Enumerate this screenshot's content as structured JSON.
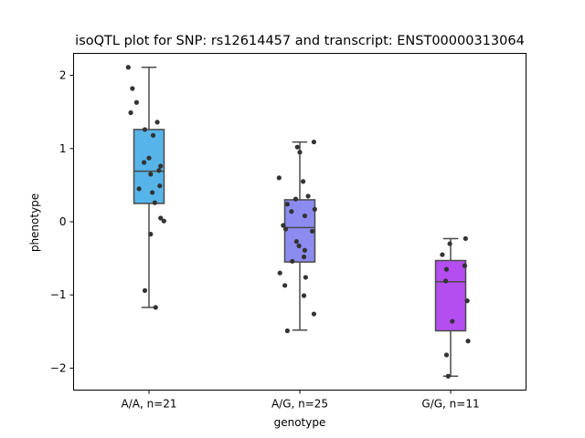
{
  "chart_data": {
    "type": "box",
    "title": "isoQTL plot for SNP: rs12614457 and transcript: ENST00000313064",
    "xlabel": "genotype",
    "ylabel": "phenotype",
    "ylim": [
      -2.3,
      2.3
    ],
    "yticks": [
      {
        "value": 2,
        "label": "2"
      },
      {
        "value": 1,
        "label": "1"
      },
      {
        "value": 0,
        "label": "0"
      },
      {
        "value": -1,
        "label": "−1"
      },
      {
        "value": -2,
        "label": "−2"
      }
    ],
    "categories": [
      "A/A, n=21",
      "A/G, n=25",
      "G/G, n=11"
    ],
    "boxes": [
      {
        "category": "A/A, n=21",
        "color": "#56b4e9",
        "whisker_low": -1.17,
        "q1": 0.25,
        "median": 0.69,
        "q3": 1.26,
        "whisker_high": 2.11
      },
      {
        "category": "A/G, n=25",
        "color": "#8c8cf0",
        "whisker_low": -1.48,
        "q1": -0.55,
        "median": -0.08,
        "q3": 0.3,
        "whisker_high": 1.09
      },
      {
        "category": "G/G, n=11",
        "color": "#b44ef0",
        "whisker_low": -2.11,
        "q1": -1.49,
        "median": -0.82,
        "q3": -0.53,
        "whisker_high": -0.23
      }
    ],
    "points": [
      [
        [
          -0.25,
          2.11
        ],
        [
          -0.2,
          1.82
        ],
        [
          -0.15,
          1.63
        ],
        [
          -0.22,
          1.49
        ],
        [
          0.1,
          1.36
        ],
        [
          -0.05,
          1.26
        ],
        [
          0.05,
          1.18
        ],
        [
          0.14,
          0.76
        ],
        [
          0.12,
          0.7
        ],
        [
          0.0,
          0.87
        ],
        [
          -0.06,
          0.81
        ],
        [
          0.02,
          0.65
        ],
        [
          -0.12,
          0.45
        ],
        [
          0.13,
          0.49
        ],
        [
          0.04,
          0.4
        ],
        [
          0.07,
          0.26
        ],
        [
          0.14,
          0.05
        ],
        [
          0.18,
          0.01
        ],
        [
          0.02,
          -0.17
        ],
        [
          -0.05,
          -0.94
        ],
        [
          0.08,
          -1.17
        ]
      ],
      [
        [
          0.17,
          1.09
        ],
        [
          -0.03,
          1.02
        ],
        [
          0.0,
          0.95
        ],
        [
          -0.25,
          0.6
        ],
        [
          0.04,
          0.55
        ],
        [
          0.1,
          0.35
        ],
        [
          -0.05,
          0.31
        ],
        [
          -0.15,
          0.24
        ],
        [
          0.18,
          0.17
        ],
        [
          -0.1,
          0.14
        ],
        [
          0.06,
          0.08
        ],
        [
          -0.2,
          -0.05
        ],
        [
          -0.17,
          -0.1
        ],
        [
          0.15,
          -0.13
        ],
        [
          -0.04,
          -0.27
        ],
        [
          -0.01,
          -0.33
        ],
        [
          0.06,
          -0.39
        ],
        [
          0.05,
          -0.48
        ],
        [
          -0.09,
          -0.54
        ],
        [
          -0.24,
          -0.7
        ],
        [
          0.07,
          -0.76
        ],
        [
          -0.18,
          -0.87
        ],
        [
          0.05,
          -1.01
        ],
        [
          0.17,
          -1.26
        ],
        [
          -0.15,
          -1.49
        ]
      ],
      [
        [
          0.18,
          -0.23
        ],
        [
          -0.01,
          -0.3
        ],
        [
          -0.1,
          -0.45
        ],
        [
          -0.05,
          -0.65
        ],
        [
          0.17,
          -0.6
        ],
        [
          -0.06,
          -0.81
        ],
        [
          0.2,
          -1.08
        ],
        [
          0.02,
          -1.36
        ],
        [
          0.21,
          -1.63
        ],
        [
          -0.05,
          -1.82
        ],
        [
          -0.03,
          -2.11
        ]
      ]
    ]
  }
}
